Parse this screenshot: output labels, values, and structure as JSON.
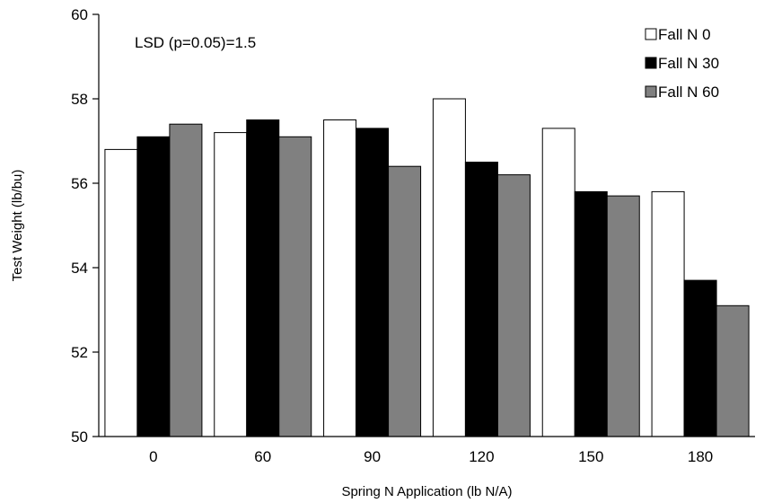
{
  "chart_data": {
    "type": "bar",
    "title": "",
    "xlabel": "Spring N Application (lb N/A)",
    "ylabel": "Test Weight (lb/bu)",
    "ylim": [
      50,
      60
    ],
    "yticks": [
      "50",
      "52",
      "54",
      "56",
      "58",
      "60"
    ],
    "categories": [
      "0",
      "60",
      "90",
      "120",
      "150",
      "180"
    ],
    "series": [
      {
        "name": "Fall N 0",
        "color": "#ffffff",
        "values": [
          56.8,
          57.2,
          57.5,
          58.0,
          57.3,
          55.8
        ]
      },
      {
        "name": "Fall N 30",
        "color": "#000000",
        "values": [
          57.1,
          57.5,
          57.3,
          56.5,
          55.8,
          53.7
        ]
      },
      {
        "name": "Fall N 60",
        "color": "#808080",
        "values": [
          57.4,
          57.1,
          56.4,
          56.2,
          55.7,
          53.1
        ]
      }
    ],
    "annotation": "LSD (p=0.05)=1.5",
    "legend_position": "top-right",
    "grid": false
  }
}
